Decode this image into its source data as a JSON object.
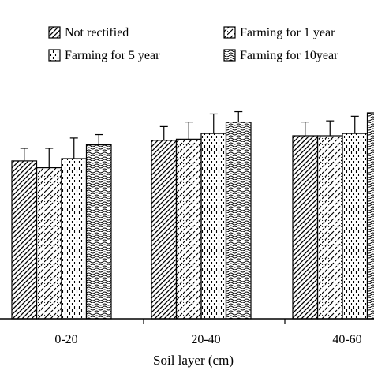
{
  "chart_data": {
    "type": "bar",
    "categories": [
      "0-20",
      "20-40",
      "40-60"
    ],
    "series": [
      {
        "name": "Not rectified",
        "values": [
          6.9,
          7.8,
          8.0
        ],
        "errors": [
          0.55,
          0.6,
          0.6
        ],
        "pattern": "diagonal-lines"
      },
      {
        "name": "Farming for 1 year",
        "values": [
          6.6,
          7.85,
          8.0
        ],
        "errors": [
          0.85,
          0.75,
          0.65
        ],
        "pattern": "diagonal-dashes"
      },
      {
        "name": "Farming for 5 year",
        "values": [
          7.0,
          8.1,
          8.1
        ],
        "errors": [
          0.9,
          0.85,
          0.75
        ],
        "pattern": "vertical-dashes"
      },
      {
        "name": "Farming for 10year",
        "values": [
          7.6,
          8.6,
          9.0
        ],
        "errors": [
          0.45,
          0.45,
          0.5
        ],
        "pattern": "waves"
      }
    ],
    "title": "",
    "xlabel": "Soil layer (cm)",
    "ylabel": "",
    "ylim": [
      0,
      12
    ],
    "legend_position": "top",
    "grid": false,
    "colors": {
      "bar_fill": "#ffffff",
      "ink": "#000000"
    }
  }
}
